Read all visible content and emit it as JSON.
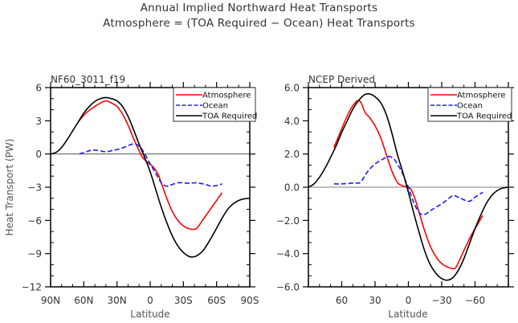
{
  "title": {
    "line1": "Annual Implied Northward Heat Transports",
    "line2": "Atmosphere = (TOA Required − Ocean) Heat Transports"
  },
  "chart_data": [
    {
      "type": "line",
      "panel_title": "NF60_3011_f19",
      "xlabel": "Latitude",
      "ylabel": "Heat Transport (PW)",
      "xlim": [
        90,
        -90
      ],
      "ylim": [
        -12,
        6
      ],
      "xticks": [
        90,
        60,
        30,
        0,
        -30,
        -60,
        -90
      ],
      "xtick_labels": [
        "90N",
        "60N",
        "30N",
        "0",
        "30S",
        "60S",
        "90S"
      ],
      "yticks": [
        6,
        3,
        0,
        -3,
        -6,
        -9,
        -12
      ],
      "ytick_labels": [
        "6",
        "3",
        "0",
        "−3",
        "−6",
        "−9",
        "−12"
      ],
      "zero_line": true,
      "legend_position": "top-right",
      "series": [
        {
          "name": "Atmosphere",
          "color": "#ff0000",
          "style": "solid",
          "x": [
            65,
            58,
            50,
            45,
            40,
            35,
            30,
            25,
            20,
            15,
            10,
            7,
            3,
            0,
            -3,
            -7,
            -10,
            -15,
            -20,
            -25,
            -30,
            -35,
            -40,
            -43,
            -48,
            -55,
            -60,
            -65
          ],
          "y": [
            2.9,
            3.7,
            4.3,
            4.6,
            4.8,
            4.6,
            4.3,
            3.6,
            2.6,
            1.4,
            0.3,
            -0.3,
            -0.7,
            -0.95,
            -1.2,
            -1.8,
            -2.6,
            -4.0,
            -5.2,
            -6.0,
            -6.5,
            -6.75,
            -6.8,
            -6.6,
            -5.9,
            -4.9,
            -4.2,
            -3.5
          ]
        },
        {
          "name": "Ocean",
          "color": "#1a1aff",
          "style": "dashed",
          "x": [
            64,
            58,
            52,
            46,
            40,
            35,
            30,
            25,
            20,
            16,
            12,
            8,
            5,
            2,
            0,
            -3,
            -7,
            -10,
            -13,
            -16,
            -20,
            -25,
            -30,
            -35,
            -40,
            -45,
            -50,
            -55,
            -60,
            -65
          ],
          "y": [
            0.0,
            0.2,
            0.35,
            0.3,
            0.2,
            0.3,
            0.4,
            0.55,
            0.75,
            0.9,
            0.85,
            0.5,
            0.0,
            -0.5,
            -0.9,
            -1.4,
            -2.1,
            -2.6,
            -2.85,
            -2.9,
            -2.75,
            -2.6,
            -2.6,
            -2.65,
            -2.6,
            -2.65,
            -2.75,
            -2.9,
            -2.85,
            -2.7
          ]
        },
        {
          "name": "TOA Required",
          "color": "#000000",
          "style": "solid",
          "x": [
            90,
            85,
            80,
            75,
            70,
            65,
            60,
            55,
            50,
            45,
            40,
            35,
            30,
            25,
            20,
            15,
            10,
            5,
            0,
            -5,
            -10,
            -15,
            -20,
            -25,
            -30,
            -35,
            -38,
            -42,
            -48,
            -55,
            -60,
            -65,
            -70,
            -75,
            -80,
            -85,
            -90
          ],
          "y": [
            0.0,
            0.15,
            0.6,
            1.3,
            2.1,
            2.9,
            3.7,
            4.3,
            4.75,
            5.0,
            5.1,
            5.0,
            4.8,
            4.3,
            3.4,
            2.2,
            0.9,
            -0.3,
            -1.6,
            -3.2,
            -4.8,
            -6.2,
            -7.4,
            -8.3,
            -8.9,
            -9.25,
            -9.3,
            -9.2,
            -8.7,
            -7.6,
            -6.7,
            -5.8,
            -5.0,
            -4.5,
            -4.2,
            -4.05,
            -4.0
          ]
        }
      ]
    },
    {
      "type": "line",
      "panel_title": "NCEP Derived",
      "xlabel": "Latitude",
      "ylabel": "",
      "xlim": [
        90,
        -90
      ],
      "ylim": [
        -6,
        6
      ],
      "xticks": [
        60,
        30,
        0,
        -30,
        -60
      ],
      "xtick_labels": [
        "60",
        "30",
        "0",
        "−30",
        "−60"
      ],
      "yticks": [
        6,
        4,
        2,
        0,
        -2,
        -4,
        -6
      ],
      "ytick_labels": [
        "6.0",
        "4.0",
        "2.0",
        "0.0",
        "−2.0",
        "−4.0",
        "−6.0"
      ],
      "zero_line": true,
      "legend_position": "top-right",
      "series": [
        {
          "name": "Atmosphere",
          "color": "#ff0000",
          "style": "solid",
          "x": [
            67,
            62,
            57,
            52,
            47,
            44,
            42,
            39,
            35,
            30,
            25,
            20,
            15,
            10,
            6,
            3,
            0,
            -3,
            -6,
            -10,
            -15,
            -20,
            -25,
            -30,
            -35,
            -40,
            -43,
            -48,
            -55,
            -60,
            -67
          ],
          "y": [
            2.4,
            3.2,
            4.0,
            4.7,
            5.15,
            5.2,
            5.0,
            4.5,
            4.2,
            3.7,
            3.0,
            2.0,
            1.0,
            0.3,
            0.1,
            0.05,
            0.0,
            -0.2,
            -0.7,
            -1.6,
            -2.7,
            -3.6,
            -4.2,
            -4.6,
            -4.8,
            -4.9,
            -4.8,
            -4.1,
            -3.1,
            -2.5,
            -1.7
          ]
        },
        {
          "name": "Ocean",
          "color": "#1a1aff",
          "style": "dashed",
          "x": [
            67,
            60,
            55,
            50,
            45,
            43,
            40,
            36,
            30,
            24,
            20,
            17,
            13,
            9,
            5,
            2,
            0,
            -3,
            -6,
            -9,
            -12,
            -16,
            -20,
            -25,
            -30,
            -35,
            -40,
            -43,
            -48,
            -55,
            -60,
            -67
          ],
          "y": [
            0.2,
            0.2,
            0.22,
            0.25,
            0.25,
            0.3,
            0.6,
            1.0,
            1.4,
            1.65,
            1.8,
            1.85,
            1.7,
            1.3,
            0.8,
            0.3,
            0.0,
            -0.6,
            -1.1,
            -1.45,
            -1.65,
            -1.6,
            -1.4,
            -1.2,
            -1.0,
            -0.75,
            -0.5,
            -0.55,
            -0.7,
            -0.85,
            -0.6,
            -0.3
          ]
        },
        {
          "name": "TOA Required",
          "color": "#000000",
          "style": "solid",
          "x": [
            90,
            85,
            80,
            75,
            70,
            65,
            60,
            55,
            50,
            45,
            40,
            37,
            34,
            30,
            25,
            20,
            15,
            10,
            5,
            0,
            -5,
            -10,
            -15,
            -20,
            -25,
            -30,
            -35,
            -40,
            -45,
            -50,
            -55,
            -60,
            -65,
            -70,
            -75,
            -80,
            -85,
            -90
          ],
          "y": [
            0.0,
            0.2,
            0.6,
            1.15,
            1.8,
            2.5,
            3.3,
            4.0,
            4.7,
            5.2,
            5.55,
            5.62,
            5.6,
            5.45,
            5.1,
            4.4,
            3.3,
            2.0,
            0.9,
            -0.3,
            -1.6,
            -2.8,
            -3.9,
            -4.7,
            -5.2,
            -5.5,
            -5.6,
            -5.45,
            -5.0,
            -4.3,
            -3.4,
            -2.5,
            -1.7,
            -1.0,
            -0.5,
            -0.2,
            -0.05,
            0.0
          ]
        }
      ]
    }
  ]
}
